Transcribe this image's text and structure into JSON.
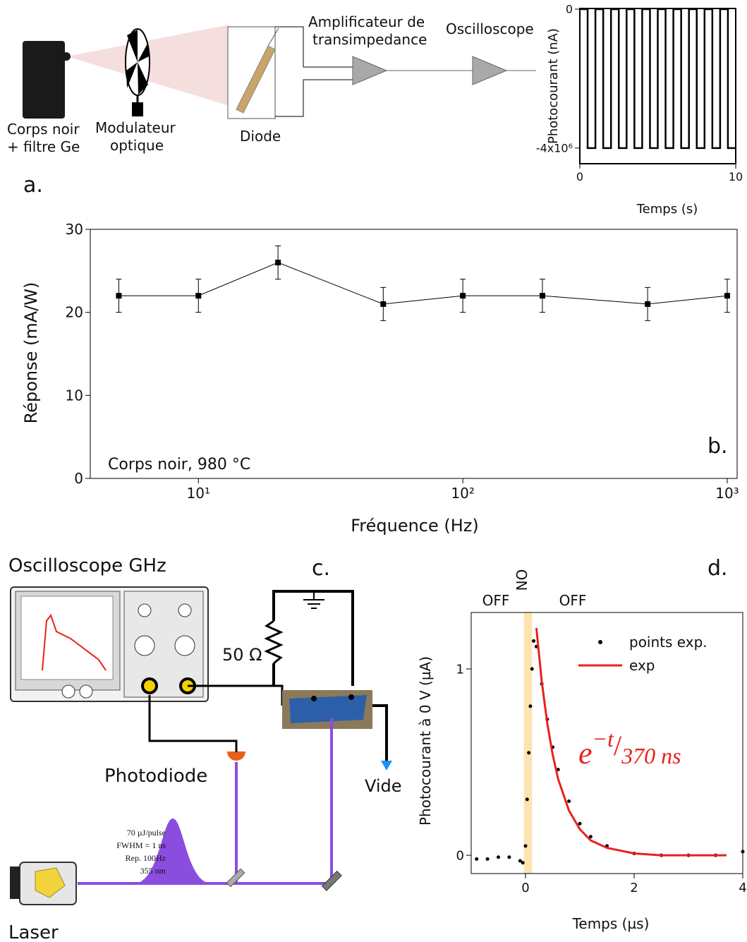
{
  "chart_data": [
    {
      "type": "line",
      "x_label": "Temps (s)",
      "y_label": "Photocourant (nA)",
      "xlim": [
        0,
        10
      ],
      "ylim": [
        -4450000,
        20000
      ],
      "xticks": [
        0,
        10
      ],
      "yticks": [
        0,
        {
          "value": -4000000,
          "label": "-4x10⁶"
        }
      ],
      "series": [
        {
          "color": "#000000",
          "x": [
            0,
            0.5,
            0.5,
            1,
            1,
            1.5,
            1.5,
            2,
            2,
            2.5,
            2.5,
            3,
            3,
            3.5,
            3.5,
            4,
            4,
            4.5,
            4.5,
            5,
            5,
            5.5,
            5.5,
            6,
            6,
            6.5,
            6.5,
            7,
            7,
            7.5,
            7.5,
            8,
            8,
            8.5,
            8.5,
            9,
            9,
            9.5,
            9.5,
            10
          ],
          "values": [
            0,
            0,
            -4000000,
            -4000000,
            0,
            0,
            -4000000,
            -4000000,
            0,
            0,
            -4000000,
            -4000000,
            0,
            0,
            -4000000,
            -4000000,
            0,
            0,
            -4000000,
            -4000000,
            0,
            0,
            -4000000,
            -4000000,
            0,
            0,
            -4000000,
            -4000000,
            0,
            0,
            -4000000,
            -4000000,
            0,
            0,
            -4000000,
            -4000000,
            0,
            0,
            -4000000,
            -4000000
          ]
        }
      ]
    },
    {
      "type": "line",
      "x_label": "Fréquence (Hz)",
      "y_label": "Réponse (mA/W)",
      "x_log": true,
      "annotation": "Corps noir, 980 °C",
      "xlim": [
        3.9,
        1090
      ],
      "ylim": [
        0,
        30
      ],
      "xticks": [
        {
          "value": 10,
          "label": "10¹"
        },
        {
          "value": 100,
          "label": "10²"
        },
        {
          "value": 1000,
          "label": "10³"
        }
      ],
      "yticks": [
        0,
        10,
        20,
        30
      ],
      "series": [
        {
          "color": "#000000",
          "markers": true,
          "x": [
            5,
            10,
            20,
            50,
            100,
            200,
            500,
            1000
          ],
          "values": [
            22,
            22,
            26,
            21,
            22,
            22,
            21,
            22
          ],
          "errors": [
            2,
            2,
            2,
            2,
            2,
            2,
            2,
            2
          ]
        }
      ]
    },
    {
      "type": "scatter",
      "x_label": "Temps (µs)",
      "y_label": "Photocourant à 0 V (µA)",
      "xlim": [
        -1,
        4
      ],
      "ylim": [
        -0.098,
        1.303
      ],
      "xticks": [
        0,
        2,
        4
      ],
      "yticks": [
        0,
        1
      ],
      "shaded_x": [
        -0.03,
        0.12
      ],
      "shade_color": "#fde3b0",
      "annotations": [
        "OFF",
        "ON",
        "OFF"
      ],
      "formula": {
        "base": "e",
        "exponent": "−t",
        "slash": "/",
        "denominator": "370 ns"
      },
      "series": [
        {
          "name": "points exp.",
          "color": "#000000",
          "mode": "markers",
          "x": [
            -0.9,
            -0.7,
            -0.5,
            -0.3,
            -0.1,
            -0.05,
            0,
            0.03,
            0.06,
            0.09,
            0.12,
            0.15,
            0.2,
            0.3,
            0.4,
            0.5,
            0.6,
            0.8,
            1.0,
            1.2,
            1.5,
            2.0,
            2.5,
            3.0,
            3.5,
            4.0
          ],
          "values": [
            -0.02,
            -0.02,
            -0.01,
            -0.01,
            -0.03,
            -0.04,
            0.05,
            0.3,
            0.55,
            0.8,
            1.0,
            1.15,
            1.12,
            0.92,
            0.73,
            0.58,
            0.46,
            0.29,
            0.17,
            0.1,
            0.05,
            0.01,
            0,
            0,
            0,
            0.02
          ]
        },
        {
          "name": "exp",
          "color": "#e8211c",
          "mode": "line",
          "x": [
            0.2,
            0.3,
            0.4,
            0.5,
            0.6,
            0.8,
            1.0,
            1.2,
            1.5,
            2.0,
            2.5,
            3.0,
            3.7
          ],
          "values": [
            1.22,
            0.93,
            0.71,
            0.54,
            0.41,
            0.24,
            0.14,
            0.08,
            0.04,
            0.01,
            0,
            0,
            0
          ]
        }
      ]
    }
  ],
  "diagram": {
    "blackbody": [
      "Corps noir",
      "+ filtre Ge"
    ],
    "modulator": [
      "Modulateur",
      "optique"
    ],
    "diode": "Diode",
    "amplifier": [
      "Amplificateur de",
      "transimpedance"
    ],
    "oscilloscope": "Oscilloscope",
    "oscilloscope_ghz": "Oscilloscope GHz",
    "resistor": "50 Ω",
    "photodiode": "Photodiode",
    "vacuum": "Vide",
    "laser": "Laser",
    "pulse": [
      "70 µJ/pulse",
      "FWHM = 1 ns",
      "Rep. 100Hz",
      "355 nm"
    ],
    "panels": [
      "a.",
      "b.",
      "c.",
      "d."
    ]
  }
}
